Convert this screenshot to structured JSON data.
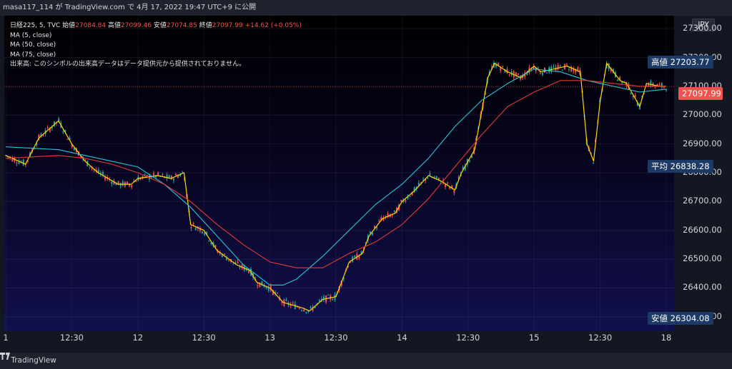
{
  "header": {
    "text": "masa117_114 が TradingView.com で 4月 17, 2022 19:47 UTC+9 に公開"
  },
  "legend": {
    "symbol_line": "日経225, 5, TVC",
    "open_label": "始値",
    "open_value": "27084.84",
    "high_label": "高値",
    "high_value": "27099.46",
    "low_label": "安値",
    "low_value": "27074.85",
    "close_label": "終値",
    "close_value": "27097.99",
    "change": "+14.62 (+0.05%)",
    "ma5": "MA (5, close)",
    "ma50": "MA (50, close)",
    "ma75": "MA (75, close)",
    "volume_note": "出来高: このシンボルの出来高データはデータ提供元から提供されておりません。"
  },
  "currency": "JPY",
  "tags": {
    "high_label": "高値",
    "high_value": "27203.77",
    "avg_label": "平均",
    "avg_value": "26838.28",
    "low_label": "安値",
    "low_value": "26304.08",
    "current_value": "27097.99"
  },
  "footer": {
    "brand": "TradingView"
  },
  "colors": {
    "up": "#26a69a",
    "down": "#ef5350",
    "ma5": "#ffd600",
    "ma50": "#26c6da",
    "ma75": "#e53935"
  },
  "chart_data": {
    "type": "line",
    "title": "日経225, 5, TVC",
    "ylim": [
      26250,
      27345
    ],
    "y_ticks": [
      27300,
      27200,
      27100,
      27000,
      26900,
      26800,
      26700,
      26600,
      26500,
      26400,
      26300
    ],
    "y_tick_labels": [
      "27300.00",
      "27200.00",
      "27100.00",
      "27000.00",
      "26900.00",
      "26800.00",
      "26700.00",
      "26600.00",
      "26500.00",
      "26400.00",
      "26300.00"
    ],
    "x_ticks": [
      "1",
      "12:30",
      "12",
      "12:30",
      "13",
      "12:30",
      "14",
      "12:30",
      "15",
      "12:30",
      "18"
    ],
    "grid": true,
    "series": [
      {
        "name": "MA (5, close)",
        "x": [
          0,
          3,
          5,
          8,
          10,
          12,
          14,
          17,
          19,
          20,
          23,
          25,
          27,
          28,
          30,
          32,
          35,
          37,
          38,
          40,
          42,
          45,
          46,
          48,
          50,
          52,
          54,
          55,
          57,
          59,
          60,
          62,
          64,
          66,
          68,
          69,
          71,
          73,
          74,
          76,
          78,
          80,
          81,
          83,
          85,
          86,
          87,
          88,
          89,
          90,
          91,
          92,
          93,
          94,
          96,
          97,
          99,
          100
        ],
        "values": [
          26860,
          26830,
          26920,
          26980,
          26900,
          26840,
          26800,
          26760,
          26760,
          26780,
          26790,
          26780,
          26800,
          26620,
          26600,
          26530,
          26480,
          26460,
          26420,
          26400,
          26350,
          26330,
          26320,
          26360,
          26370,
          26490,
          26520,
          26580,
          26640,
          26660,
          26700,
          26740,
          26790,
          26770,
          26740,
          26800,
          26880,
          27130,
          27180,
          27150,
          27130,
          27170,
          27150,
          27160,
          27170,
          27160,
          27150,
          26900,
          26840,
          27050,
          27180,
          27150,
          27120,
          27110,
          27030,
          27110,
          27100,
          27100
        ]
      },
      {
        "name": "MA (50, close)",
        "x": [
          0,
          8,
          12,
          16,
          20,
          24,
          28,
          32,
          36,
          40,
          42,
          44,
          46,
          48,
          52,
          56,
          60,
          64,
          68,
          72,
          76,
          80,
          84,
          88,
          92,
          96,
          100
        ],
        "values": [
          26890,
          26880,
          26860,
          26840,
          26820,
          26760,
          26680,
          26580,
          26480,
          26410,
          26410,
          26430,
          26470,
          26510,
          26600,
          26690,
          26760,
          26850,
          26960,
          27050,
          27110,
          27160,
          27150,
          27120,
          27100,
          27080,
          27090
        ]
      },
      {
        "name": "MA (75, close)",
        "x": [
          0,
          8,
          12,
          16,
          20,
          24,
          28,
          32,
          36,
          40,
          44,
          48,
          52,
          56,
          60,
          64,
          68,
          72,
          76,
          80,
          84,
          88,
          92,
          96,
          100
        ],
        "values": [
          26850,
          26860,
          26850,
          26830,
          26800,
          26760,
          26700,
          26620,
          26550,
          26490,
          26470,
          26470,
          26520,
          26560,
          26620,
          26710,
          26820,
          26930,
          27030,
          27080,
          27120,
          27120,
          27110,
          27100,
          27100
        ]
      }
    ]
  }
}
